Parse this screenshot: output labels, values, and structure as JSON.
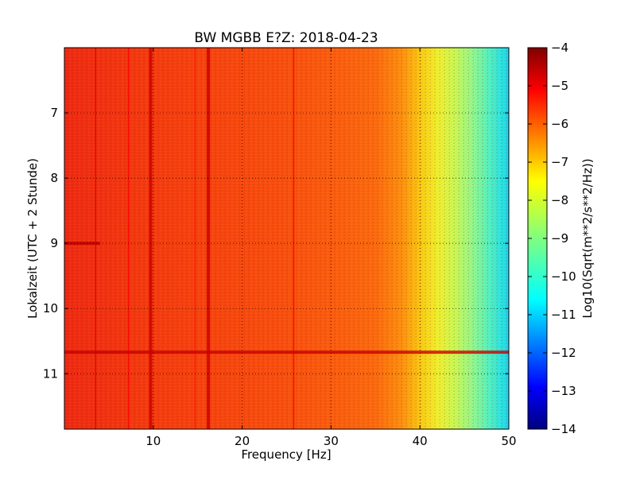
{
  "chart_data": {
    "type": "heatmap",
    "title": "BW MGBB E?Z: 2018-04-23",
    "xlabel": "Frequency [Hz]",
    "ylabel": "Lokalzeit (UTC + 2 Stunde)",
    "xlim": [
      0,
      50
    ],
    "ylim": [
      11.85,
      6.0
    ],
    "y_inverted": true,
    "x_ticks": [
      10,
      20,
      30,
      40,
      50
    ],
    "y_ticks": [
      7,
      8,
      9,
      10,
      11
    ],
    "grid": true,
    "colorbar": {
      "label": "Log10(Sqrt(m**2/s**2/Hz))",
      "min": -14,
      "max": -4,
      "ticks": [
        -4,
        -5,
        -6,
        -7,
        -8,
        -9,
        -10,
        -11,
        -12,
        -13,
        -14
      ],
      "colormap": "jet"
    },
    "spectral_profile": [
      {
        "freq": 0,
        "value": -5.5
      },
      {
        "freq": 5,
        "value": -5.7
      },
      {
        "freq": 10,
        "value": -5.9
      },
      {
        "freq": 20,
        "value": -6.0
      },
      {
        "freq": 30,
        "value": -6.2
      },
      {
        "freq": 35,
        "value": -6.5
      },
      {
        "freq": 38,
        "value": -6.9
      },
      {
        "freq": 40,
        "value": -7.3
      },
      {
        "freq": 42,
        "value": -7.8
      },
      {
        "freq": 44,
        "value": -8.3
      },
      {
        "freq": 46,
        "value": -8.8
      },
      {
        "freq": 48,
        "value": -9.3
      },
      {
        "freq": 50,
        "value": -10.2
      }
    ],
    "vertical_bands": [
      {
        "freq": 3.5,
        "value": -5.0
      },
      {
        "freq": 7.2,
        "value": -5.2
      },
      {
        "freq": 9.7,
        "value": -4.8
      },
      {
        "freq": 16.2,
        "value": -4.8
      },
      {
        "freq": 25.8,
        "value": -5.2
      },
      {
        "freq": 14.7,
        "value": -5.5
      }
    ],
    "horizontal_events": [
      {
        "time": 9.0,
        "freq_range": [
          0,
          4
        ],
        "value": -4.6
      },
      {
        "time": 10.67,
        "freq_range": [
          0,
          50
        ],
        "value": -4.7
      }
    ]
  }
}
